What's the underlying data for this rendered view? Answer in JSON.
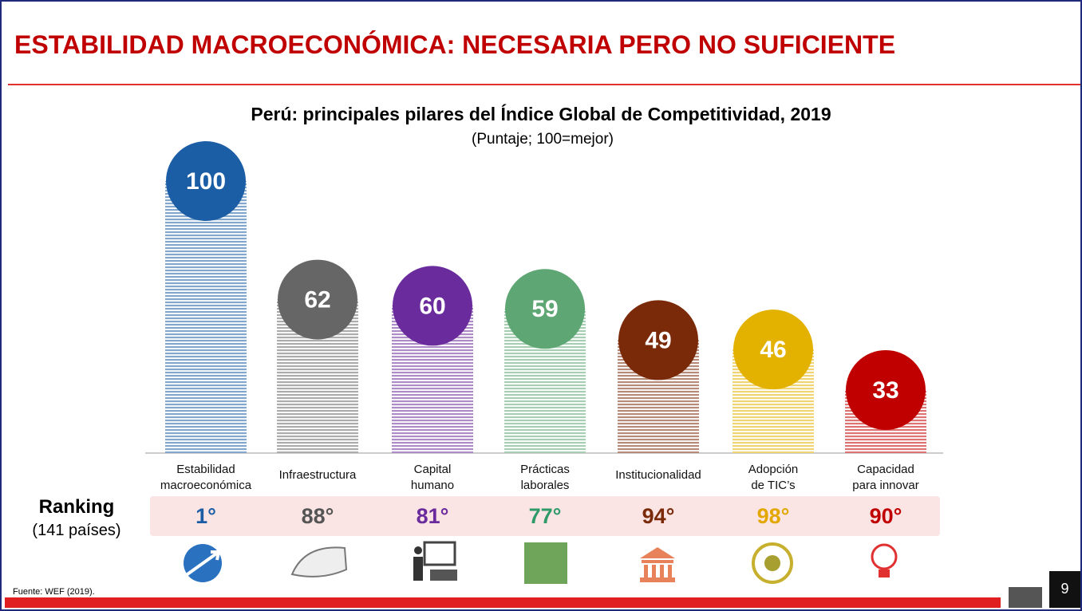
{
  "header": {
    "title": "ESTABILIDAD MACROECONÓMICA: NECESARIA PERO NO SUFICIENTE"
  },
  "chart_data": {
    "type": "bar",
    "title": "Perú: principales pilares del Índice Global de Competitividad, 2019",
    "subtitle": "(Puntaje;  100=mejor)",
    "categories": [
      "Estabilidad\nmacroeconómica",
      "Infraestructura",
      "Capital\nhumano",
      "Prácticas\nlaborales",
      "Institucionalidad",
      "Adopción\nde TIC’s",
      "Capacidad\npara innovar"
    ],
    "values": [
      100,
      62,
      60,
      59,
      49,
      46,
      33
    ],
    "colors": [
      "#1c5ea6",
      "#666666",
      "#6a2c9c",
      "#5ea673",
      "#7a2a08",
      "#e3b100",
      "#c00000"
    ]
  },
  "ranking": {
    "title": "Ranking",
    "subtitle": "(141 países)",
    "values": [
      "1°",
      "88°",
      "81°",
      "77°",
      "94°",
      "98°",
      "90°"
    ],
    "colors": [
      "#1c5ea6",
      "#555555",
      "#6a2c9c",
      "#2e9a6a",
      "#7a2a08",
      "#e3a800",
      "#c00000"
    ]
  },
  "footer": {
    "source": "Fuente: WEF (2019).",
    "page": "9"
  }
}
